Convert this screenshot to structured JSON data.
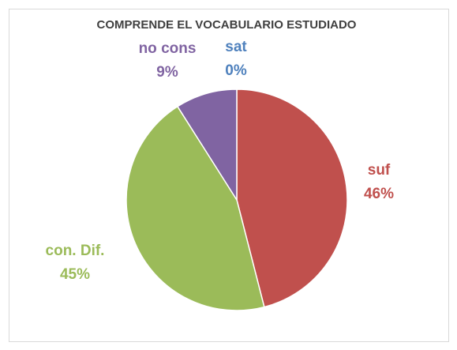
{
  "chart_data": {
    "type": "pie",
    "title": "COMPRENDE EL VOCABULARIO ESTUDIADO",
    "categories": [
      "sat",
      "suf",
      "con. Dif.",
      "no cons"
    ],
    "values": [
      0,
      46,
      45,
      9
    ],
    "value_labels": [
      "0%",
      "46%",
      "45%",
      "9%"
    ],
    "colors": [
      "#4f81bd",
      "#c0504d",
      "#9bbb59",
      "#8064a2"
    ]
  }
}
